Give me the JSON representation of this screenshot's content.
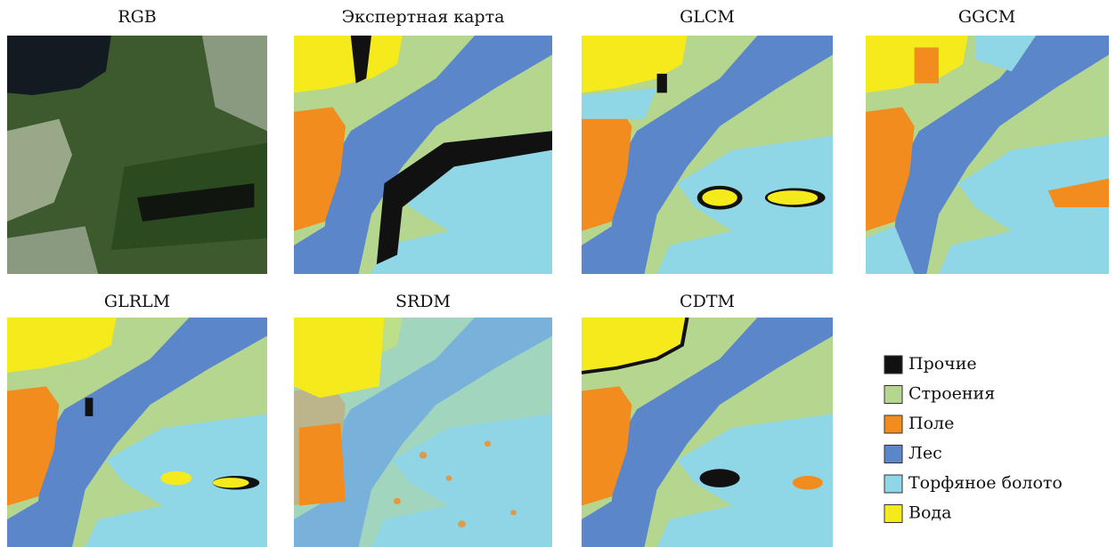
{
  "panels": [
    {
      "title": "RGB"
    },
    {
      "title": "Экспертная карта"
    },
    {
      "title": "GLCM"
    },
    {
      "title": "GGCM"
    },
    {
      "title": "GLRLM"
    },
    {
      "title": "SRDM"
    },
    {
      "title": "CDTM"
    }
  ],
  "legend": [
    {
      "label": "Прочие",
      "color": "#111111"
    },
    {
      "label": "Строения",
      "color": "#b5d68f"
    },
    {
      "label": "Поле",
      "color": "#f28c1e"
    },
    {
      "label": "Лес",
      "color": "#5b86c9"
    },
    {
      "label": "Торфяное болото",
      "color": "#8fd6e6"
    },
    {
      "label": "Вода",
      "color": "#f5ea1c"
    }
  ]
}
